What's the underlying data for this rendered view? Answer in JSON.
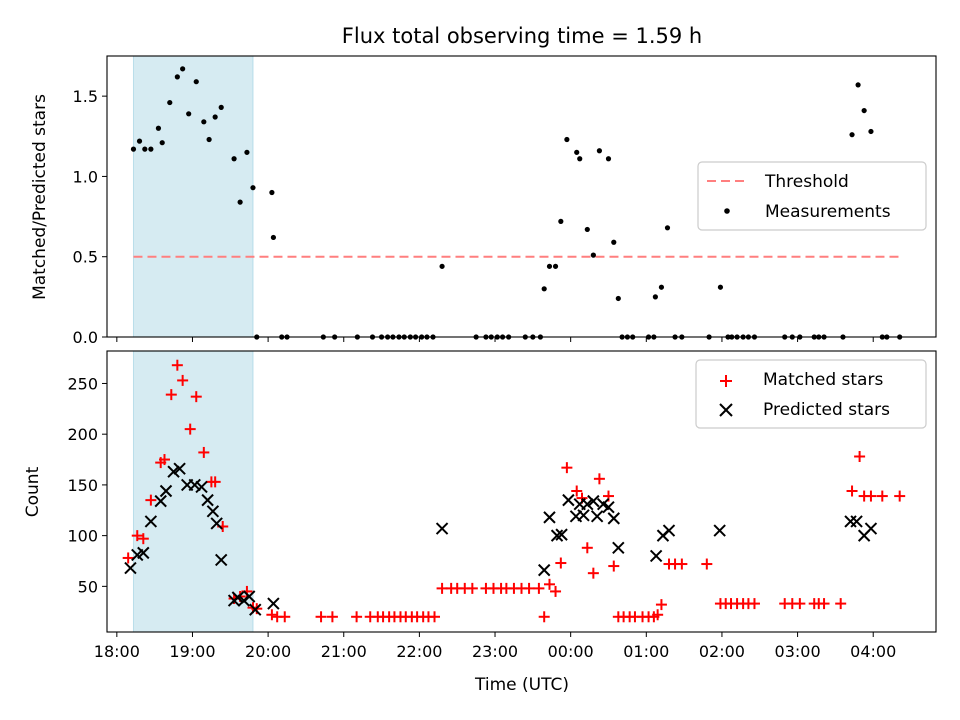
{
  "figure": {
    "title": "Flux total observing time = 1.59 h"
  },
  "chart_data": [
    {
      "type": "scatter",
      "panel": "top",
      "ylabel": "Matched/Predicted stars",
      "ylim": [
        0,
        1.75
      ],
      "yticks": [
        0.0,
        0.5,
        1.0,
        1.5
      ],
      "ytick_labels": [
        "0.0",
        "0.5",
        "1.0",
        "1.5"
      ],
      "xlim": [
        17.87,
        28.83
      ],
      "xticks": [
        18,
        19,
        20,
        21,
        22,
        23,
        24,
        25,
        26,
        27,
        28
      ],
      "shaded_region": [
        18.22,
        19.8
      ],
      "legend_position": "center-right",
      "threshold": {
        "name": "Threshold",
        "value": 0.5,
        "x_range": [
          18.22,
          28.35
        ],
        "color": "#ff7f7f"
      },
      "series": [
        {
          "name": "Measurements",
          "marker": "dot",
          "color": "#000000",
          "points": [
            [
              18.22,
              1.17
            ],
            [
              18.3,
              1.22
            ],
            [
              18.37,
              1.17
            ],
            [
              18.45,
              1.17
            ],
            [
              18.55,
              1.3
            ],
            [
              18.6,
              1.21
            ],
            [
              18.7,
              1.46
            ],
            [
              18.8,
              1.62
            ],
            [
              18.87,
              1.67
            ],
            [
              18.95,
              1.39
            ],
            [
              19.05,
              1.59
            ],
            [
              19.15,
              1.34
            ],
            [
              19.22,
              1.23
            ],
            [
              19.3,
              1.37
            ],
            [
              19.38,
              1.43
            ],
            [
              19.55,
              1.11
            ],
            [
              19.63,
              0.84
            ],
            [
              19.72,
              1.15
            ],
            [
              19.8,
              0.93
            ],
            [
              19.85,
              0.0
            ],
            [
              20.05,
              0.9
            ],
            [
              20.07,
              0.62
            ],
            [
              20.18,
              0.0
            ],
            [
              20.25,
              0.0
            ],
            [
              20.73,
              0.0
            ],
            [
              20.88,
              0.0
            ],
            [
              21.18,
              0.0
            ],
            [
              21.38,
              0.0
            ],
            [
              21.5,
              0.0
            ],
            [
              21.58,
              0.0
            ],
            [
              21.65,
              0.0
            ],
            [
              21.73,
              0.0
            ],
            [
              21.8,
              0.0
            ],
            [
              21.88,
              0.0
            ],
            [
              21.95,
              0.0
            ],
            [
              22.03,
              0.0
            ],
            [
              22.1,
              0.0
            ],
            [
              22.18,
              0.0
            ],
            [
              22.3,
              0.44
            ],
            [
              22.75,
              0.0
            ],
            [
              22.88,
              0.0
            ],
            [
              22.95,
              0.0
            ],
            [
              23.03,
              0.0
            ],
            [
              23.1,
              0.0
            ],
            [
              23.18,
              0.0
            ],
            [
              23.4,
              0.0
            ],
            [
              23.5,
              0.0
            ],
            [
              23.6,
              0.0
            ],
            [
              23.65,
              0.3
            ],
            [
              23.72,
              0.44
            ],
            [
              23.8,
              0.44
            ],
            [
              23.87,
              0.72
            ],
            [
              23.95,
              1.23
            ],
            [
              24.08,
              1.15
            ],
            [
              24.12,
              1.11
            ],
            [
              24.22,
              0.67
            ],
            [
              24.3,
              0.51
            ],
            [
              24.38,
              1.16
            ],
            [
              24.5,
              1.11
            ],
            [
              24.57,
              0.59
            ],
            [
              24.63,
              0.24
            ],
            [
              24.68,
              0.0
            ],
            [
              24.75,
              0.0
            ],
            [
              24.82,
              0.0
            ],
            [
              25.03,
              0.0
            ],
            [
              25.1,
              0.0
            ],
            [
              25.12,
              0.25
            ],
            [
              25.2,
              0.31
            ],
            [
              25.28,
              0.68
            ],
            [
              25.38,
              0.0
            ],
            [
              25.47,
              0.0
            ],
            [
              25.83,
              0.0
            ],
            [
              25.98,
              0.31
            ],
            [
              26.08,
              0.0
            ],
            [
              26.13,
              0.0
            ],
            [
              26.2,
              0.0
            ],
            [
              26.28,
              0.0
            ],
            [
              26.35,
              0.0
            ],
            [
              26.43,
              0.0
            ],
            [
              26.83,
              0.0
            ],
            [
              26.93,
              0.0
            ],
            [
              27.03,
              0.0
            ],
            [
              27.22,
              0.0
            ],
            [
              27.28,
              0.0
            ],
            [
              27.35,
              0.0
            ],
            [
              27.6,
              0.0
            ],
            [
              27.72,
              1.26
            ],
            [
              27.8,
              1.57
            ],
            [
              27.88,
              1.41
            ],
            [
              27.97,
              1.28
            ],
            [
              28.12,
              0.0
            ],
            [
              28.18,
              0.0
            ],
            [
              28.35,
              0.0
            ]
          ]
        }
      ]
    },
    {
      "type": "scatter",
      "panel": "bottom",
      "xlabel": "Time (UTC)",
      "ylabel": "Count",
      "ylim": [
        5,
        282
      ],
      "yticks": [
        50,
        100,
        150,
        200,
        250
      ],
      "ytick_labels": [
        "50",
        "100",
        "150",
        "200",
        "250"
      ],
      "xlim": [
        17.87,
        28.83
      ],
      "xticks": [
        18,
        19,
        20,
        21,
        22,
        23,
        24,
        25,
        26,
        27,
        28
      ],
      "xtick_labels": [
        "18:00",
        "19:00",
        "20:00",
        "21:00",
        "22:00",
        "23:00",
        "00:00",
        "01:00",
        "02:00",
        "03:00",
        "04:00"
      ],
      "shaded_region": [
        18.22,
        19.8
      ],
      "legend_position": "top-right",
      "series": [
        {
          "name": "Matched stars",
          "marker": "plus",
          "color": "#ff0000",
          "points": [
            [
              18.15,
              78
            ],
            [
              18.27,
              100
            ],
            [
              18.35,
              97
            ],
            [
              18.45,
              135
            ],
            [
              18.58,
              172
            ],
            [
              18.63,
              175
            ],
            [
              18.72,
              239
            ],
            [
              18.8,
              268
            ],
            [
              18.87,
              253
            ],
            [
              18.97,
              205
            ],
            [
              19.05,
              237
            ],
            [
              19.15,
              182
            ],
            [
              19.25,
              153
            ],
            [
              19.3,
              153
            ],
            [
              19.4,
              109
            ],
            [
              19.55,
              38
            ],
            [
              19.63,
              40
            ],
            [
              19.72,
              45
            ],
            [
              19.8,
              29
            ],
            [
              19.85,
              28
            ],
            [
              20.05,
              22
            ],
            [
              20.12,
              20
            ],
            [
              20.22,
              20
            ],
            [
              20.7,
              20
            ],
            [
              20.85,
              20
            ],
            [
              21.17,
              20
            ],
            [
              21.35,
              20
            ],
            [
              21.45,
              20
            ],
            [
              21.52,
              20
            ],
            [
              21.6,
              20
            ],
            [
              21.67,
              20
            ],
            [
              21.75,
              20
            ],
            [
              21.82,
              20
            ],
            [
              21.9,
              20
            ],
            [
              21.97,
              20
            ],
            [
              22.05,
              20
            ],
            [
              22.12,
              20
            ],
            [
              22.2,
              20
            ],
            [
              22.3,
              48
            ],
            [
              22.42,
              48
            ],
            [
              22.5,
              48
            ],
            [
              22.6,
              48
            ],
            [
              22.7,
              48
            ],
            [
              22.88,
              48
            ],
            [
              22.98,
              48
            ],
            [
              23.08,
              48
            ],
            [
              23.15,
              48
            ],
            [
              23.25,
              48
            ],
            [
              23.35,
              48
            ],
            [
              23.45,
              48
            ],
            [
              23.58,
              48
            ],
            [
              23.65,
              20
            ],
            [
              23.72,
              52
            ],
            [
              23.8,
              45
            ],
            [
              23.87,
              73
            ],
            [
              23.95,
              167
            ],
            [
              24.08,
              144
            ],
            [
              24.15,
              137
            ],
            [
              24.22,
              88
            ],
            [
              24.3,
              63
            ],
            [
              24.38,
              156
            ],
            [
              24.5,
              139
            ],
            [
              24.57,
              70
            ],
            [
              24.63,
              20
            ],
            [
              24.7,
              20
            ],
            [
              24.78,
              20
            ],
            [
              24.85,
              20
            ],
            [
              24.95,
              20
            ],
            [
              25.03,
              20
            ],
            [
              25.1,
              20
            ],
            [
              25.15,
              22
            ],
            [
              25.2,
              32
            ],
            [
              25.3,
              72
            ],
            [
              25.38,
              72
            ],
            [
              25.47,
              72
            ],
            [
              25.8,
              72
            ],
            [
              25.98,
              33
            ],
            [
              26.05,
              33
            ],
            [
              26.12,
              33
            ],
            [
              26.2,
              33
            ],
            [
              26.28,
              33
            ],
            [
              26.35,
              33
            ],
            [
              26.43,
              33
            ],
            [
              26.83,
              33
            ],
            [
              26.93,
              33
            ],
            [
              27.03,
              33
            ],
            [
              27.22,
              33
            ],
            [
              27.28,
              33
            ],
            [
              27.35,
              33
            ],
            [
              27.57,
              33
            ],
            [
              27.72,
              144
            ],
            [
              27.82,
              178
            ],
            [
              27.88,
              139
            ],
            [
              27.97,
              139
            ],
            [
              28.12,
              139
            ],
            [
              28.35,
              139
            ]
          ]
        },
        {
          "name": "Predicted stars",
          "marker": "x",
          "color": "#000000",
          "points": [
            [
              18.18,
              68
            ],
            [
              18.27,
              81
            ],
            [
              18.35,
              83
            ],
            [
              18.45,
              114
            ],
            [
              18.58,
              134
            ],
            [
              18.65,
              144
            ],
            [
              18.75,
              163
            ],
            [
              18.83,
              166
            ],
            [
              18.93,
              150
            ],
            [
              19.03,
              150
            ],
            [
              19.12,
              148
            ],
            [
              19.2,
              135
            ],
            [
              19.27,
              124
            ],
            [
              19.32,
              112
            ],
            [
              19.38,
              76
            ],
            [
              19.55,
              36
            ],
            [
              19.6,
              39
            ],
            [
              19.68,
              36
            ],
            [
              19.75,
              40
            ],
            [
              19.83,
              27
            ],
            [
              20.07,
              33
            ],
            [
              22.3,
              107
            ],
            [
              23.65,
              66
            ],
            [
              23.72,
              118
            ],
            [
              23.82,
              100
            ],
            [
              23.88,
              101
            ],
            [
              23.97,
              135
            ],
            [
              24.07,
              119
            ],
            [
              24.12,
              131
            ],
            [
              24.17,
              120
            ],
            [
              24.22,
              131
            ],
            [
              24.3,
              134
            ],
            [
              24.35,
              119
            ],
            [
              24.43,
              131
            ],
            [
              24.5,
              128
            ],
            [
              24.57,
              117
            ],
            [
              24.63,
              88
            ],
            [
              25.13,
              80
            ],
            [
              25.22,
              100
            ],
            [
              25.3,
              105
            ],
            [
              25.97,
              105
            ],
            [
              27.7,
              114
            ],
            [
              27.78,
              114
            ],
            [
              27.88,
              100
            ],
            [
              27.97,
              107
            ]
          ]
        }
      ]
    }
  ]
}
